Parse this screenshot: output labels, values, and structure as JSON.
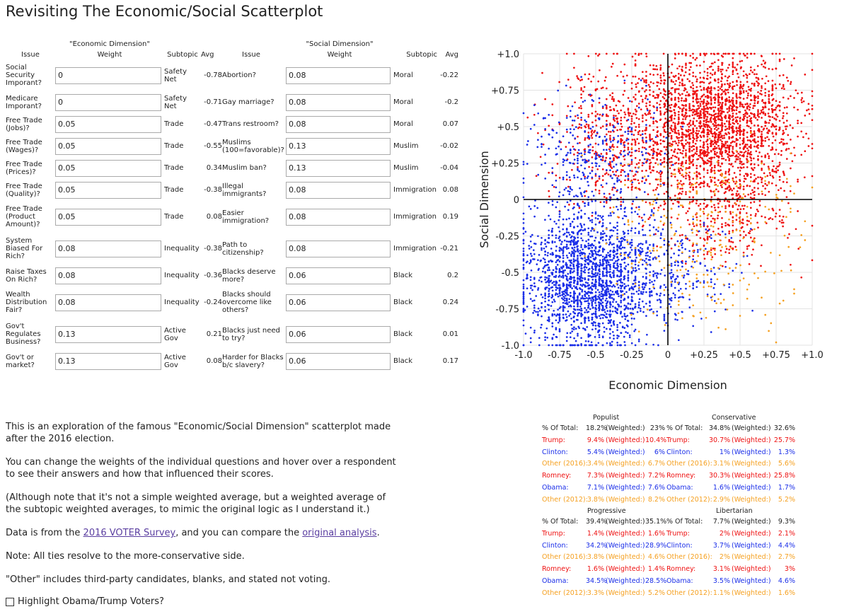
{
  "page": {
    "title": "Revisiting The Economic/Social Scatterplot",
    "highlight_label": "Highlight Obama/Trump Voters?"
  },
  "economic": {
    "dimension_label": "\"Economic Dimension\"",
    "headers": {
      "issue": "Issue",
      "weight": "Weight",
      "subtopic": "Subtopic",
      "avg": "Avg"
    },
    "rows": [
      {
        "issue": "Social\nSecurity\nImporant?",
        "weight": "0",
        "subtopic": "Safety\nNet",
        "avg": "-0.78"
      },
      {
        "issue": "Medicare\nImporant?",
        "weight": "0",
        "subtopic": "Safety\nNet",
        "avg": "-0.71"
      },
      {
        "issue": "Free Trade\n(Jobs)?",
        "weight": "0.05",
        "subtopic": "Trade",
        "avg": "-0.47"
      },
      {
        "issue": "Free Trade\n(Wages)?",
        "weight": "0.05",
        "subtopic": "Trade",
        "avg": "-0.55"
      },
      {
        "issue": "Free Trade\n(Prices)?",
        "weight": "0.05",
        "subtopic": "Trade",
        "avg": "0.34"
      },
      {
        "issue": "Free Trade\n(Quality)?",
        "weight": "0.05",
        "subtopic": "Trade",
        "avg": "-0.38"
      },
      {
        "issue": "Free Trade\n(Product\nAmount)?",
        "weight": "0.05",
        "subtopic": "Trade",
        "avg": "0.08"
      },
      {
        "issue": "System\nBiased For\nRich?",
        "weight": "0.08",
        "subtopic": "Inequality",
        "avg": "-0.38"
      },
      {
        "issue": "Raise Taxes\nOn Rich?",
        "weight": "0.08",
        "subtopic": "Inequality",
        "avg": "-0.36"
      },
      {
        "issue": "Wealth\nDistribution\nFair?",
        "weight": "0.08",
        "subtopic": "Inequality",
        "avg": "-0.24"
      },
      {
        "issue": "Gov't\nRegulates\nBusiness?",
        "weight": "0.13",
        "subtopic": "Active\nGov",
        "avg": "0.21"
      },
      {
        "issue": "Gov't or\nmarket?",
        "weight": "0.13",
        "subtopic": "Active\nGov",
        "avg": "0.08"
      }
    ]
  },
  "social": {
    "dimension_label": "\"Social Dimension\"",
    "headers": {
      "issue": "Issue",
      "weight": "Weight",
      "subtopic": "Subtopic",
      "avg": "Avg"
    },
    "rows": [
      {
        "issue": "Abortion?",
        "weight": "0.08",
        "subtopic": "Moral",
        "avg": "-0.22"
      },
      {
        "issue": "Gay marriage?",
        "weight": "0.08",
        "subtopic": "Moral",
        "avg": "-0.2"
      },
      {
        "issue": "Trans restroom?",
        "weight": "0.08",
        "subtopic": "Moral",
        "avg": "0.07"
      },
      {
        "issue": "Muslims\n(100=favorable)?",
        "weight": "0.13",
        "subtopic": "Muslim",
        "avg": "-0.02"
      },
      {
        "issue": "Muslim ban?",
        "weight": "0.13",
        "subtopic": "Muslim",
        "avg": "-0.04"
      },
      {
        "issue": "Illegal\nimmigrants?",
        "weight": "0.08",
        "subtopic": "Immigration",
        "avg": "0.08"
      },
      {
        "issue": "Easier\nimmigration?",
        "weight": "0.08",
        "subtopic": "Immigration",
        "avg": "0.19"
      },
      {
        "issue": "Path to\ncitizenship?",
        "weight": "0.08",
        "subtopic": "Immigration",
        "avg": "-0.21"
      },
      {
        "issue": "Blacks deserve\nmore?",
        "weight": "0.06",
        "subtopic": "Black",
        "avg": "0.2"
      },
      {
        "issue": "Blacks should\novercome like\nothers?",
        "weight": "0.06",
        "subtopic": "Black",
        "avg": "0.24"
      },
      {
        "issue": "Blacks just need\nto try?",
        "weight": "0.06",
        "subtopic": "Black",
        "avg": "0.01"
      },
      {
        "issue": "Harder for Blacks\nb/c slavery?",
        "weight": "0.06",
        "subtopic": "Black",
        "avg": "0.17"
      }
    ]
  },
  "description": {
    "p1": "This is an exploration of the famous \"Economic/Social Dimension\" scatterplot made after the 2016 election.",
    "p2": "You can change the weights of the individual questions and hover over a respondent to see their answers and how that influenced their scores.",
    "p3": "(Although note that it's not a simple weighted average, but a weighted average of the subtopic weighted averages, to mimic the original logic as I understand it.)",
    "p4_pre": "Data is from the ",
    "p4_link1": "2016 VOTER Survey",
    "p4_mid": ", and you can compare the ",
    "p4_link2": "original analysis",
    "p4_post": ".",
    "p5": "Note: All ties resolve to the more-conservative side.",
    "p6": "\"Other\" includes third-party candidates, blanks, and stated not voting."
  },
  "chart_data": {
    "type": "scatter",
    "title": "",
    "xlabel": "Economic Dimension",
    "ylabel": "Social Dimension",
    "xlim": [
      -1.0,
      1.0
    ],
    "ylim": [
      -1.0,
      1.0
    ],
    "x_ticks": [
      {
        "v": -1.0,
        "label": "-1.0"
      },
      {
        "v": -0.75,
        "label": "-0.75"
      },
      {
        "v": -0.5,
        "label": "-0.5"
      },
      {
        "v": -0.25,
        "label": "-0.25"
      },
      {
        "v": 0,
        "label": "0"
      },
      {
        "v": 0.25,
        "label": "+0.25"
      },
      {
        "v": 0.5,
        "label": "+0.5"
      },
      {
        "v": 0.75,
        "label": "+0.75"
      },
      {
        "v": 1.0,
        "label": "+1.0"
      }
    ],
    "y_ticks": [
      {
        "v": 1.0,
        "label": "+1.0"
      },
      {
        "v": 0.75,
        "label": "+0.75"
      },
      {
        "v": 0.5,
        "label": "+0.5"
      },
      {
        "v": 0.25,
        "label": "+0.25"
      },
      {
        "v": 0,
        "label": "0"
      },
      {
        "v": -0.25,
        "label": "-0.25"
      },
      {
        "v": -0.5,
        "label": "-0.5"
      },
      {
        "v": -0.75,
        "label": "-0.75"
      },
      {
        "v": -1.0,
        "label": "-1.0"
      }
    ],
    "grid": true,
    "series": [
      {
        "name": "Trump",
        "color": "#ee1111"
      },
      {
        "name": "Clinton",
        "color": "#1a2ee8"
      },
      {
        "name": "Other (2016)",
        "color": "#f5a020"
      }
    ],
    "density_clusters": [
      {
        "series": "Trump",
        "cx": 0.35,
        "cy": 0.5,
        "sx": 0.35,
        "sy": 0.32,
        "n": 2200
      },
      {
        "series": "Trump",
        "cx": -0.3,
        "cy": 0.45,
        "sx": 0.35,
        "sy": 0.35,
        "n": 650
      },
      {
        "series": "Trump",
        "cx": 0.4,
        "cy": -0.15,
        "sx": 0.3,
        "sy": 0.2,
        "n": 260
      },
      {
        "series": "Clinton",
        "cx": -0.55,
        "cy": -0.55,
        "sx": 0.3,
        "sy": 0.3,
        "n": 1900
      },
      {
        "series": "Clinton",
        "cx": -0.5,
        "cy": 0.25,
        "sx": 0.3,
        "sy": 0.3,
        "n": 380
      },
      {
        "series": "Clinton",
        "cx": 0.1,
        "cy": -0.5,
        "sx": 0.25,
        "sy": 0.25,
        "n": 220
      },
      {
        "series": "Other (2016)",
        "cx": 0.25,
        "cy": -0.25,
        "sx": 0.45,
        "sy": 0.4,
        "n": 330
      }
    ]
  },
  "stats": {
    "quadrants": [
      {
        "name": "Populist",
        "rows": [
          {
            "label": "% Of Total:",
            "pct": "18.2%",
            "wlabel": "(Weighted:)",
            "wpct": "23%",
            "color": "#222222"
          },
          {
            "label": "Trump:",
            "pct": "9.4%",
            "wlabel": "(Weighted:)",
            "wpct": "10.4%",
            "color": "#ee1111"
          },
          {
            "label": "Clinton:",
            "pct": "5.4%",
            "wlabel": "(Weighted:)",
            "wpct": "6%",
            "color": "#1a2ee8"
          },
          {
            "label": "Other (2016):",
            "pct": "3.4%",
            "wlabel": "(Weighted:)",
            "wpct": "6.7%",
            "color": "#f5a020"
          },
          {
            "label": "Romney:",
            "pct": "7.3%",
            "wlabel": "(Weighted:)",
            "wpct": "7.2%",
            "color": "#ee1111"
          },
          {
            "label": "Obama:",
            "pct": "7.1%",
            "wlabel": "(Weighted:)",
            "wpct": "7.6%",
            "color": "#1a2ee8"
          },
          {
            "label": "Other (2012):",
            "pct": "3.8%",
            "wlabel": "(Weighted:)",
            "wpct": "8.2%",
            "color": "#f5a020"
          }
        ]
      },
      {
        "name": "Conservative",
        "rows": [
          {
            "label": "% Of Total:",
            "pct": "34.8%",
            "wlabel": "(Weighted:)",
            "wpct": "32.6%",
            "color": "#222222"
          },
          {
            "label": "Trump:",
            "pct": "30.7%",
            "wlabel": "(Weighted:)",
            "wpct": "25.7%",
            "color": "#ee1111"
          },
          {
            "label": "Clinton:",
            "pct": "1%",
            "wlabel": "(Weighted:)",
            "wpct": "1.3%",
            "color": "#1a2ee8"
          },
          {
            "label": "Other (2016):",
            "pct": "3.1%",
            "wlabel": "(Weighted:)",
            "wpct": "5.6%",
            "color": "#f5a020"
          },
          {
            "label": "Romney:",
            "pct": "30.3%",
            "wlabel": "(Weighted:)",
            "wpct": "25.8%",
            "color": "#ee1111"
          },
          {
            "label": "Obama:",
            "pct": "1.6%",
            "wlabel": "(Weighted:)",
            "wpct": "1.7%",
            "color": "#1a2ee8"
          },
          {
            "label": "Other (2012):",
            "pct": "2.9%",
            "wlabel": "(Weighted:)",
            "wpct": "5.2%",
            "color": "#f5a020"
          }
        ]
      },
      {
        "name": "Progressive",
        "rows": [
          {
            "label": "% Of Total:",
            "pct": "39.4%",
            "wlabel": "(Weighted:)",
            "wpct": "35.1%",
            "color": "#222222"
          },
          {
            "label": "Trump:",
            "pct": "1.4%",
            "wlabel": "(Weighted:)",
            "wpct": "1.6%",
            "color": "#ee1111"
          },
          {
            "label": "Clinton:",
            "pct": "34.2%",
            "wlabel": "(Weighted:)",
            "wpct": "28.9%",
            "color": "#1a2ee8"
          },
          {
            "label": "Other (2016):",
            "pct": "3.8%",
            "wlabel": "(Weighted:)",
            "wpct": "4.6%",
            "color": "#f5a020"
          },
          {
            "label": "Romney:",
            "pct": "1.6%",
            "wlabel": "(Weighted:)",
            "wpct": "1.4%",
            "color": "#ee1111"
          },
          {
            "label": "Obama:",
            "pct": "34.5%",
            "wlabel": "(Weighted:)",
            "wpct": "28.5%",
            "color": "#1a2ee8"
          },
          {
            "label": "Other (2012):",
            "pct": "3.3%",
            "wlabel": "(Weighted:)",
            "wpct": "5.2%",
            "color": "#f5a020"
          }
        ]
      },
      {
        "name": "Libertarian",
        "rows": [
          {
            "label": "% Of Total:",
            "pct": "7.7%",
            "wlabel": "(Weighted:)",
            "wpct": "9.3%",
            "color": "#222222"
          },
          {
            "label": "Trump:",
            "pct": "2%",
            "wlabel": "(Weighted:)",
            "wpct": "2.1%",
            "color": "#ee1111"
          },
          {
            "label": "Clinton:",
            "pct": "3.7%",
            "wlabel": "(Weighted:)",
            "wpct": "4.4%",
            "color": "#1a2ee8"
          },
          {
            "label": "Other (2016):",
            "pct": "2%",
            "wlabel": "(Weighted:)",
            "wpct": "2.7%",
            "color": "#f5a020"
          },
          {
            "label": "Romney:",
            "pct": "3.1%",
            "wlabel": "(Weighted:)",
            "wpct": "3%",
            "color": "#ee1111"
          },
          {
            "label": "Obama:",
            "pct": "3.5%",
            "wlabel": "(Weighted:)",
            "wpct": "4.6%",
            "color": "#1a2ee8"
          },
          {
            "label": "Other (2012):",
            "pct": "1.1%",
            "wlabel": "(Weighted:)",
            "wpct": "1.6%",
            "color": "#f5a020"
          }
        ]
      }
    ]
  }
}
